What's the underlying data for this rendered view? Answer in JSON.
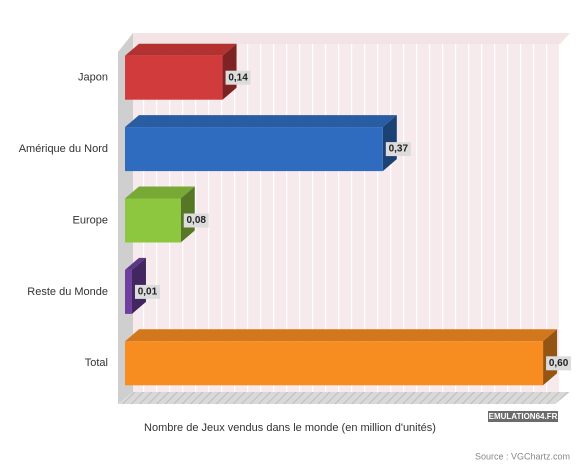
{
  "chart_data": {
    "type": "bar3d_horizontal",
    "categories": [
      "Japon",
      "Amérique du Nord",
      "Europe",
      "Reste du Monde",
      "Total"
    ],
    "values": [
      0.14,
      0.37,
      0.08,
      0.01,
      0.6
    ],
    "value_labels": [
      "0,14",
      "0,37",
      "0,08",
      "0,01",
      "0,60"
    ],
    "colors": [
      "#d13b3b",
      "#2f6cc0",
      "#8dc63f",
      "#6e3f9e",
      "#f78c20"
    ],
    "xlim": [
      0,
      0.62
    ],
    "xlabel": "Nombre de Jeux vendus dans le monde (en million d'unités)",
    "watermark": "EMULATION64.FR",
    "source": "Source : VGChartz.com"
  }
}
